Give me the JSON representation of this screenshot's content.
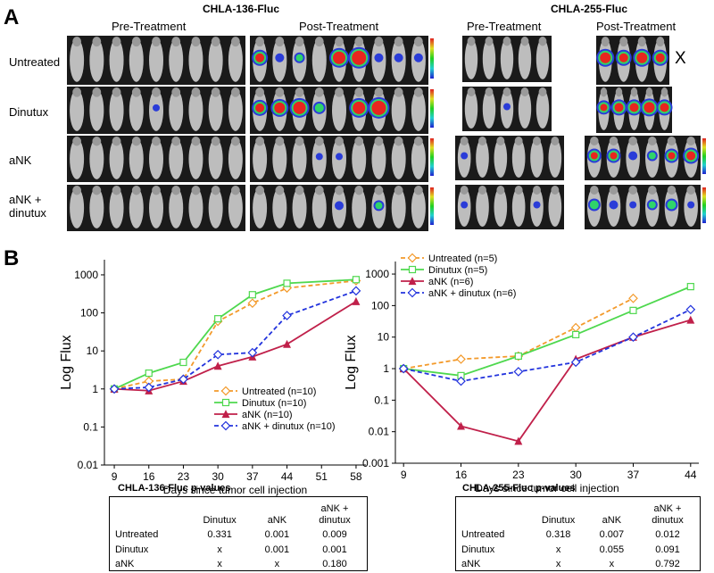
{
  "panel_a": {
    "label": "A",
    "groups": [
      {
        "title": "CHLA-136-Fluc",
        "pre": "Pre-Treatment",
        "post": "Post-Treatment"
      },
      {
        "title": "CHLA-255-Fluc",
        "pre": "Pre-Treatment",
        "post": "Post-Treatment"
      }
    ],
    "rows": [
      "Untreated",
      "Dinutux",
      "aNK",
      "aNK + dinutux"
    ],
    "excluded_mark": "X"
  },
  "panel_b": {
    "label": "B"
  },
  "chart_data": [
    {
      "type": "line",
      "x_label": "Days since tumor cell injection",
      "y_label": "Log Flux",
      "log_y": true,
      "legend": "lower right",
      "x": [
        9,
        16,
        23,
        30,
        37,
        44,
        58
      ],
      "xlim": [
        7,
        60
      ],
      "xticks": [
        9,
        16,
        23,
        30,
        37,
        44,
        51,
        58
      ],
      "ylim": [
        0.01,
        2500
      ],
      "yticks": [
        0.01,
        0.1,
        1,
        10,
        100,
        1000
      ],
      "series": [
        {
          "name": "Untreated (n=10)",
          "color": "#f39a2b",
          "marker": "diamond",
          "dashed": true,
          "values": [
            1,
            1.6,
            1.8,
            60,
            180,
            450,
            700
          ]
        },
        {
          "name": "Dinutux (n=10)",
          "color": "#4ed84e",
          "marker": "square",
          "dashed": false,
          "values": [
            1,
            2.6,
            5,
            70,
            300,
            600,
            750
          ]
        },
        {
          "name": "aNK (n=10)",
          "color": "#c0204a",
          "marker": "triangle",
          "dashed": false,
          "values": [
            1,
            0.9,
            1.6,
            4,
            7,
            15,
            200
          ]
        },
        {
          "name": "aNK + dinutux (n=10)",
          "color": "#2233dd",
          "marker": "diamond",
          "dashed": true,
          "values": [
            1,
            1.1,
            1.8,
            8,
            9,
            85,
            380
          ]
        }
      ]
    },
    {
      "type": "line",
      "x_label": "Days since tumor cell injection",
      "y_label": "Log Flux",
      "log_y": true,
      "legend": "upper left",
      "x": [
        9,
        16,
        23,
        30,
        37,
        44
      ],
      "xlim": [
        8,
        45
      ],
      "xticks": [
        9,
        16,
        23,
        30,
        37,
        44
      ],
      "ylim": [
        0.001,
        2500
      ],
      "yticks": [
        0.001,
        0.01,
        0.1,
        1,
        10,
        100,
        1000
      ],
      "series": [
        {
          "name": "Untreated (n=5)",
          "color": "#f39a2b",
          "marker": "diamond",
          "dashed": true,
          "values": [
            1,
            2,
            2.5,
            20,
            170,
            null
          ]
        },
        {
          "name": "Dinutux (n=5)",
          "color": "#4ed84e",
          "marker": "square",
          "dashed": false,
          "values": [
            1,
            0.6,
            2.5,
            12,
            70,
            400
          ]
        },
        {
          "name": "aNK (n=6)",
          "color": "#c0204a",
          "marker": "triangle",
          "dashed": false,
          "values": [
            1,
            0.015,
            0.005,
            2,
            10,
            35
          ]
        },
        {
          "name": "aNK + dinutux (n=6)",
          "color": "#2233dd",
          "marker": "diamond",
          "dashed": true,
          "values": [
            1,
            0.4,
            0.8,
            1.6,
            10,
            75
          ]
        }
      ]
    }
  ],
  "tables": [
    {
      "title": "CHLA-136-Fluc p-values",
      "columns": [
        "Dinutux",
        "aNK",
        "aNK + dinutux"
      ],
      "rows": [
        {
          "label": "Untreated",
          "cells": [
            "0.331",
            "0.001",
            "0.009"
          ]
        },
        {
          "label": "Dinutux",
          "cells": [
            "x",
            "0.001",
            "0.001"
          ]
        },
        {
          "label": "aNK",
          "cells": [
            "x",
            "x",
            "0.180"
          ]
        }
      ]
    },
    {
      "title": "CHLA-255-Fluc p-values",
      "columns": [
        "Dinutux",
        "aNK",
        "aNK + dinutux"
      ],
      "rows": [
        {
          "label": "Untreated",
          "cells": [
            "0.318",
            "0.007",
            "0.012"
          ]
        },
        {
          "label": "Dinutux",
          "cells": [
            "x",
            "0.055",
            "0.091"
          ]
        },
        {
          "label": "aNK",
          "cells": [
            "x",
            "x",
            "0.792"
          ]
        }
      ]
    }
  ]
}
